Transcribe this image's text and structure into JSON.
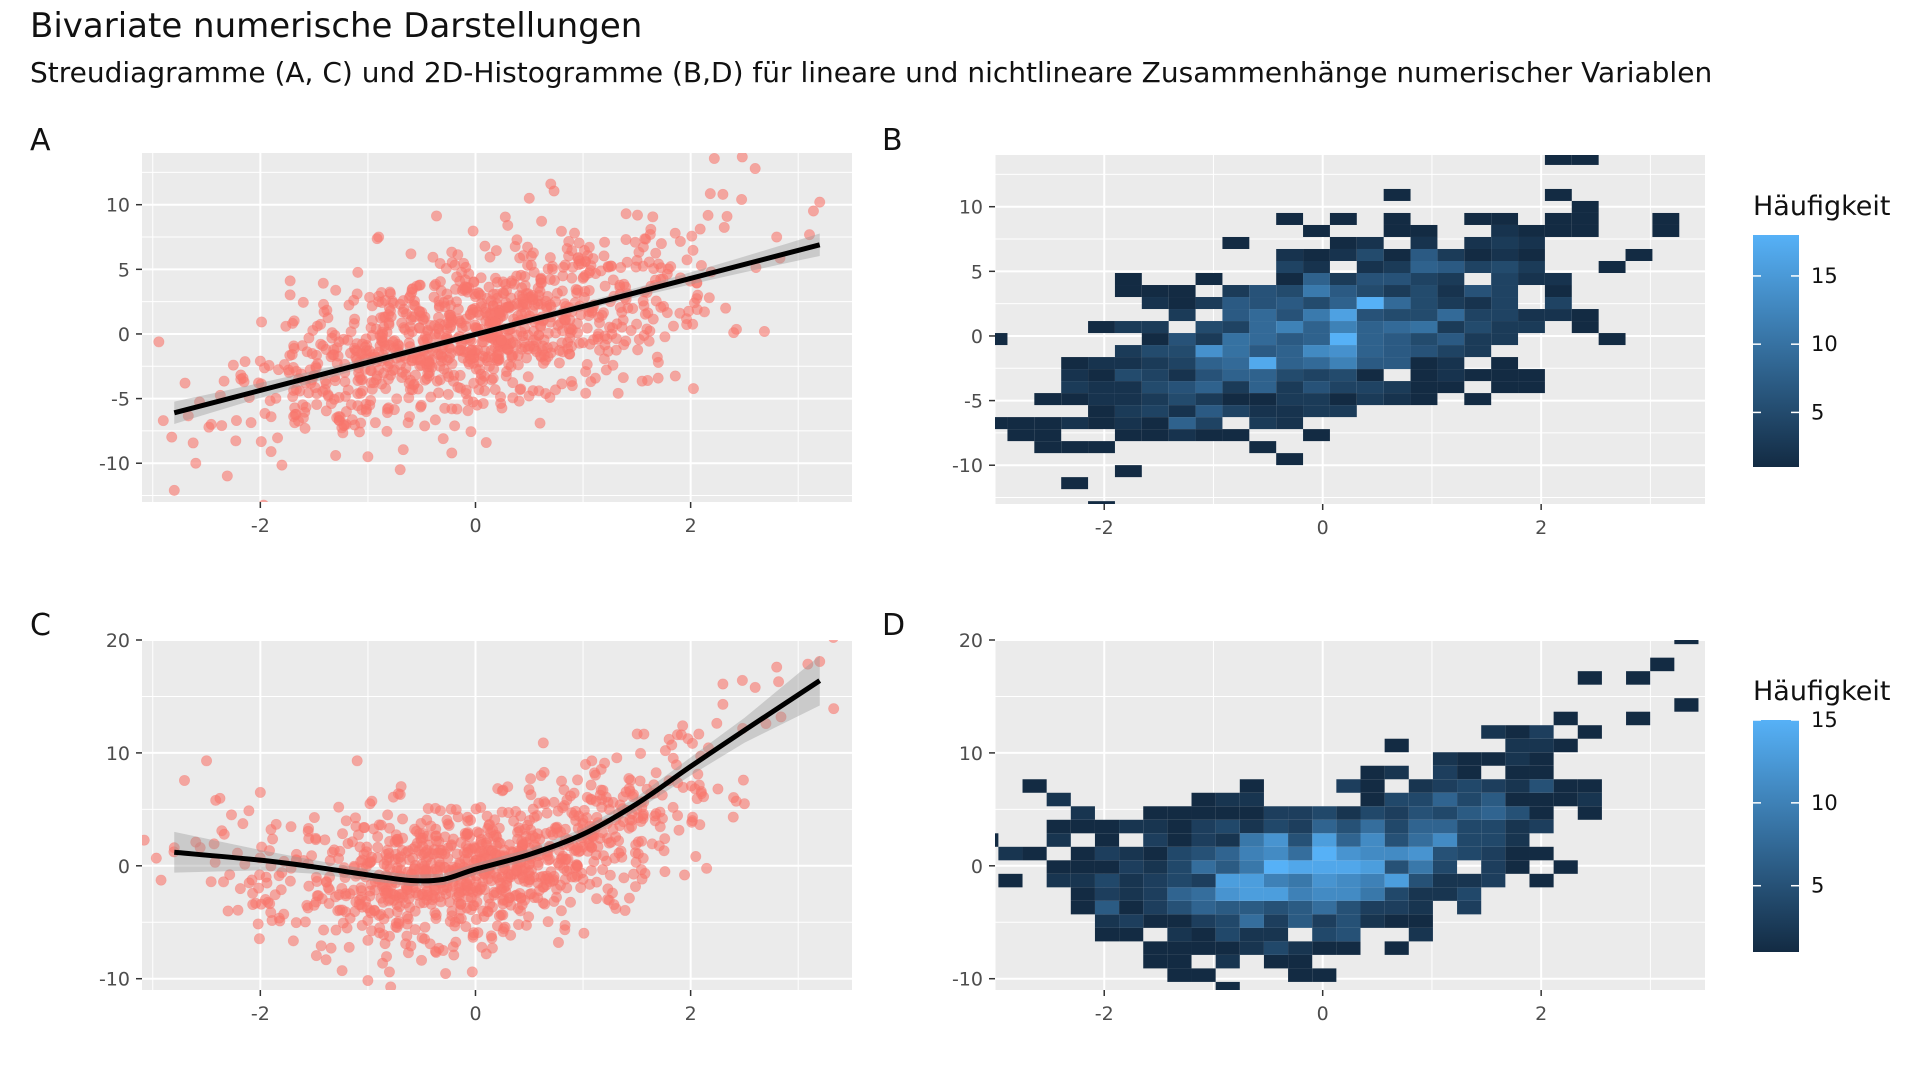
{
  "figure": {
    "title": "Bivariate numerische Darstellungen",
    "subtitle": "Streudiagramme (A, C) und 2D-Histogramme (B,D) für lineare und nichtlineare Zusammenhänge numerischer Variablen"
  },
  "chart_data": [
    {
      "panel": "A",
      "type": "scatter",
      "title": "",
      "xlabel": "",
      "ylabel": "",
      "xlim": [
        -3.1,
        3.5
      ],
      "ylim": [
        -13.0,
        14.0
      ],
      "x_ticks": [
        -2,
        0,
        2
      ],
      "y_ticks": [
        -10,
        -5,
        0,
        5,
        10
      ],
      "grid": true,
      "point_color": "#f8766d",
      "n_points": 1000,
      "points_sample": [
        [
          -2.8,
          -12.1
        ],
        [
          -2.7,
          -3.8
        ],
        [
          -2.6,
          -10.0
        ],
        [
          -2.0,
          -2.1
        ],
        [
          -1.9,
          -9.1
        ],
        [
          -1.3,
          -9.4
        ],
        [
          -1.0,
          -9.5
        ],
        [
          -0.7,
          -10.5
        ],
        [
          -0.8,
          2.0
        ],
        [
          -1.1,
          3.1
        ],
        [
          -1.2,
          -6.0
        ],
        [
          -1.6,
          -6.5
        ],
        [
          -1.9,
          -6.4
        ],
        [
          -0.9,
          7.5
        ],
        [
          -0.3,
          -8.1
        ],
        [
          0.1,
          -8.4
        ],
        [
          0.6,
          -6.9
        ],
        [
          0.5,
          10.5
        ],
        [
          0.7,
          11.6
        ],
        [
          0.3,
          8.4
        ],
        [
          -0.6,
          6.2
        ],
        [
          1.2,
          7.1
        ],
        [
          1.4,
          9.3
        ],
        [
          2.3,
          10.8
        ],
        [
          2.6,
          12.8
        ],
        [
          3.2,
          10.2
        ],
        [
          2.8,
          7.5
        ],
        [
          2.4,
          0.1
        ],
        [
          1.7,
          -2.2
        ],
        [
          1.6,
          -3.6
        ],
        [
          0.9,
          -4.0
        ],
        [
          0.0,
          0.5
        ],
        [
          0.3,
          2.1
        ],
        [
          -0.4,
          -1.3
        ],
        [
          0.6,
          3.3
        ],
        [
          1.0,
          4.3
        ],
        [
          -1.5,
          -3.2
        ],
        [
          -0.9,
          -1.4
        ],
        [
          1.9,
          1.6
        ],
        [
          2.1,
          5.3
        ]
      ],
      "fit": {
        "method": "lm",
        "color": "#000000",
        "x": [
          -2.8,
          3.2
        ],
        "y": [
          -6.1,
          6.9
        ],
        "ci_halfwidth": [
          0.55,
          0.62
        ]
      }
    },
    {
      "panel": "B",
      "type": "heatmap",
      "title": "",
      "xlabel": "",
      "ylabel": "",
      "xlim": [
        -3.0,
        3.5
      ],
      "ylim": [
        -13.0,
        14.0
      ],
      "x_ticks": [
        -2,
        0,
        2
      ],
      "y_ticks": [
        -10,
        -5,
        0,
        5,
        10
      ],
      "grid": true,
      "bins": 30,
      "legend": {
        "title": "Häufigkeit",
        "breaks": [
          5,
          10,
          15
        ],
        "range": [
          1,
          18
        ],
        "position": "right",
        "color_low": "#132b43",
        "color_high": "#56b1f7"
      }
    },
    {
      "panel": "C",
      "type": "scatter",
      "title": "",
      "xlabel": "",
      "ylabel": "",
      "xlim": [
        -3.1,
        3.5
      ],
      "ylim": [
        -11.0,
        20.0
      ],
      "x_ticks": [
        -2,
        0,
        2
      ],
      "y_ticks": [
        -10,
        0,
        10,
        20
      ],
      "grid": true,
      "point_color": "#f8766d",
      "n_points": 1000,
      "points_sample": [
        [
          -2.8,
          1.6
        ],
        [
          -2.6,
          2.1
        ],
        [
          -2.5,
          9.3
        ],
        [
          -2.3,
          -4.0
        ],
        [
          -2.0,
          6.5
        ],
        [
          -1.8,
          -0.6
        ],
        [
          -1.4,
          2.3
        ],
        [
          -1.1,
          9.3
        ],
        [
          -1.0,
          -6.6
        ],
        [
          -0.8,
          -9.4
        ],
        [
          -0.6,
          -7.1
        ],
        [
          -0.3,
          -7.5
        ],
        [
          0.1,
          -7.8
        ],
        [
          0.4,
          -5.2
        ],
        [
          0.3,
          7.0
        ],
        [
          0.8,
          7.5
        ],
        [
          1.2,
          9.1
        ],
        [
          1.5,
          5.0
        ],
        [
          1.8,
          11.2
        ],
        [
          2.1,
          6.4
        ],
        [
          2.3,
          14.3
        ],
        [
          2.3,
          16.1
        ],
        [
          2.6,
          15.8
        ],
        [
          2.8,
          17.6
        ],
        [
          3.2,
          18.1
        ],
        [
          2.7,
          12.6
        ],
        [
          2.5,
          5.5
        ],
        [
          1.0,
          -1.2
        ],
        [
          0.5,
          0.2
        ],
        [
          -0.5,
          -1.0
        ],
        [
          0.0,
          1.5
        ],
        [
          -1.5,
          -3.5
        ],
        [
          0.7,
          3.0
        ]
      ],
      "fit": {
        "method": "loess",
        "color": "#000000",
        "x": [
          -2.8,
          -2.0,
          -1.5,
          -1.0,
          -0.6,
          -0.3,
          0.0,
          0.5,
          1.0,
          1.5,
          2.0,
          2.5,
          3.2
        ],
        "y": [
          1.2,
          0.5,
          -0.1,
          -0.8,
          -1.3,
          -1.2,
          -0.3,
          1.0,
          2.8,
          5.5,
          8.8,
          12.0,
          16.4
        ],
        "ci_halfwidth": [
          1.8,
          0.9,
          0.6,
          0.5,
          0.5,
          0.5,
          0.5,
          0.5,
          0.5,
          0.6,
          0.8,
          1.1,
          2.2
        ]
      }
    },
    {
      "panel": "D",
      "type": "heatmap",
      "title": "",
      "xlabel": "",
      "ylabel": "",
      "xlim": [
        -3.0,
        3.5
      ],
      "ylim": [
        -11.0,
        20.0
      ],
      "x_ticks": [
        -2,
        0,
        2
      ],
      "y_ticks": [
        -10,
        0,
        10,
        20
      ],
      "grid": true,
      "bins": 30,
      "legend": {
        "title": "Häufigkeit",
        "breaks": [
          5,
          10,
          15
        ],
        "range": [
          1,
          15
        ],
        "position": "right",
        "color_low": "#132b43",
        "color_high": "#56b1f7"
      }
    }
  ]
}
